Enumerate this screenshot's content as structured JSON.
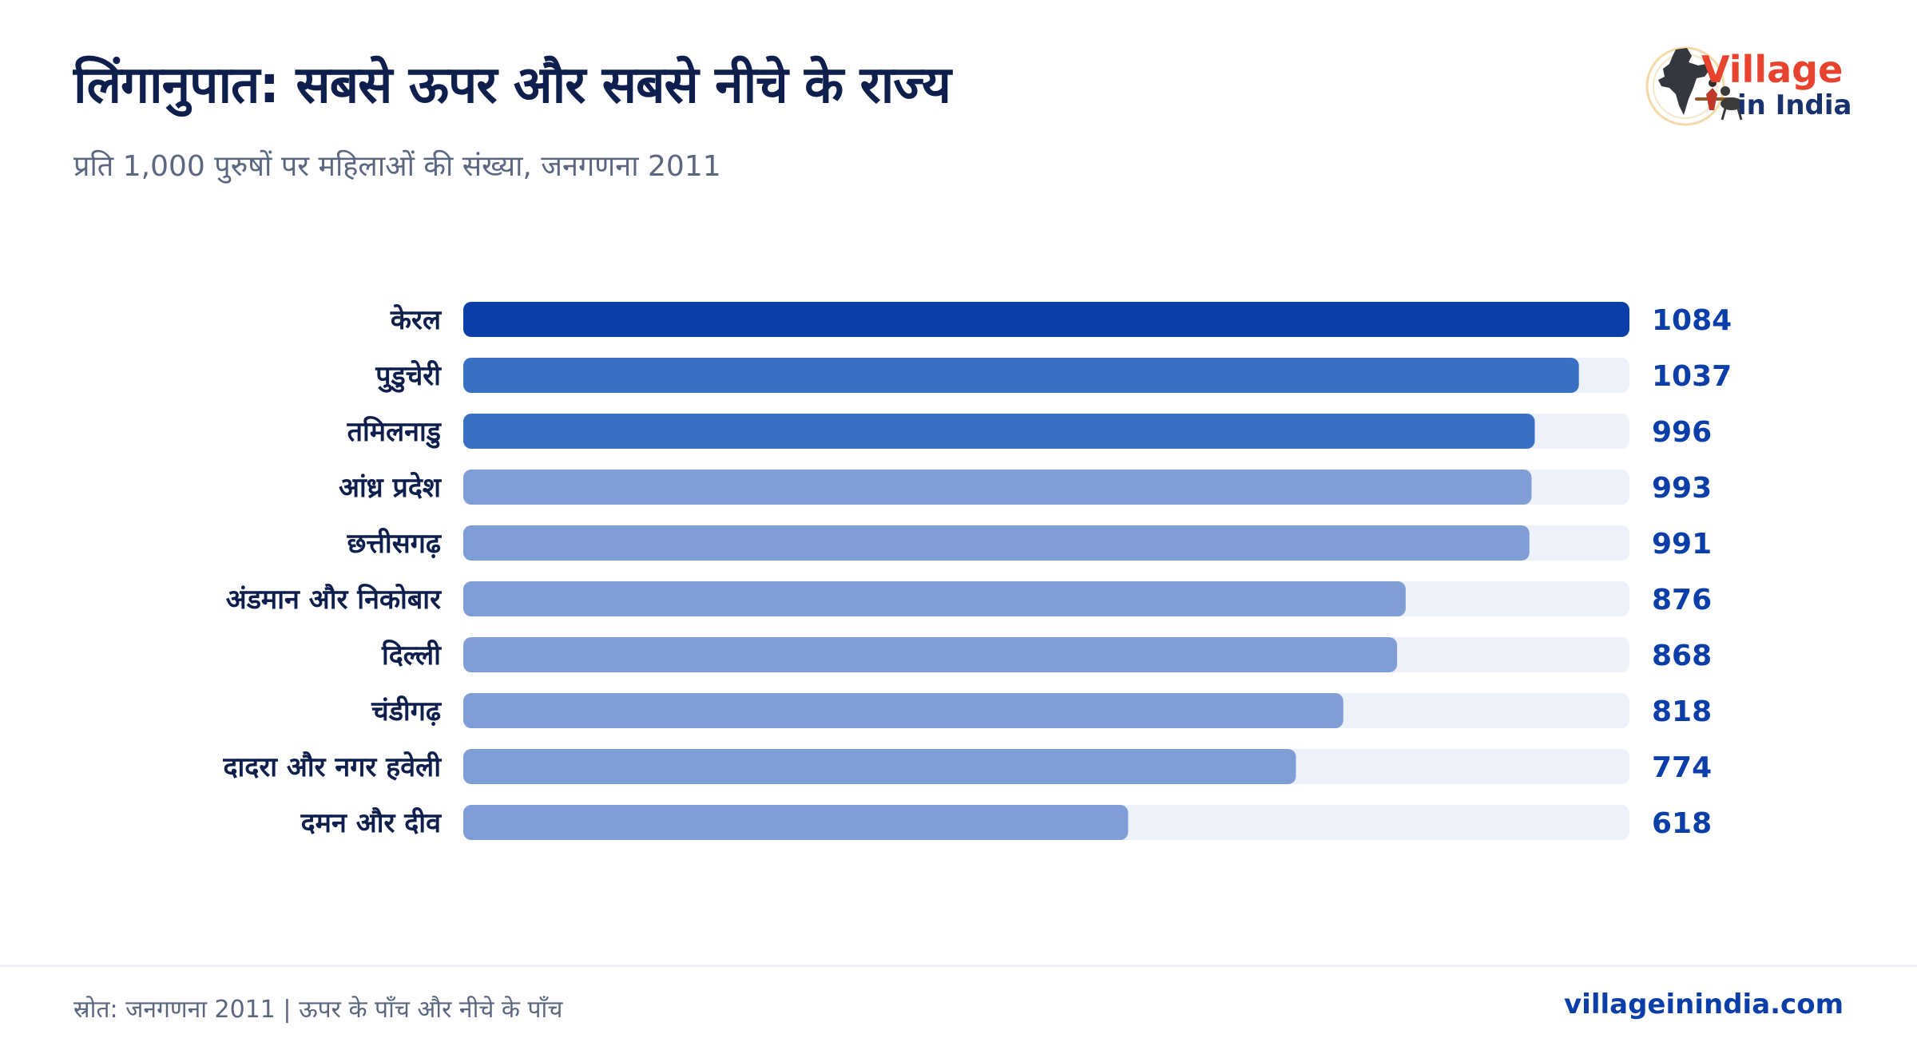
{
  "header": {
    "title": "लिंगानुपात: सबसे ऊपर और सबसे नीचे के राज्य",
    "subtitle": "प्रति 1,000 पुरुषों पर महिलाओं की संख्या, जनगणना 2011"
  },
  "logo": {
    "line1": "Village",
    "line2": "in India",
    "icon": "india-map-farmer-logo"
  },
  "chart_data": {
    "type": "bar",
    "orientation": "horizontal",
    "categories": [
      "केरल",
      "पुडुचेरी",
      "तमिलनाडु",
      "आंध्र प्रदेश",
      "छत्तीसगढ़",
      "अंडमान और निकोबार",
      "दिल्ली",
      "चंडीगढ़",
      "दादरा और नगर हवेली",
      "दमन और दीव"
    ],
    "values": [
      1084,
      1037,
      996,
      993,
      991,
      876,
      868,
      818,
      774,
      618
    ],
    "value_labels": [
      "1084",
      "1037",
      "996",
      "993",
      "991",
      "876",
      "868",
      "818",
      "774",
      "618"
    ],
    "xlim": [
      0,
      1084
    ],
    "grid": false,
    "legend": "none",
    "colors": {
      "top": "#0b3ea8",
      "high": "#3a6fc6",
      "rest": "#7f9ed6",
      "track": "#edf1fa",
      "label": "#0e1f4d",
      "value": "#0b3ea8"
    }
  },
  "footer": {
    "source": "स्रोत: जनगणना 2011 | ऊपर के पाँच और नीचे के पाँच",
    "site": "villageinindia.com"
  }
}
